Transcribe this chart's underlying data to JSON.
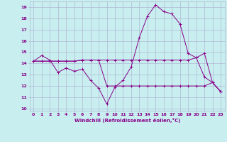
{
  "title": "",
  "xlabel": "Windchill (Refroidissement éolien,°C)",
  "ylabel": "",
  "background_color": "#c8eef0",
  "grid_color": "#aaaacc",
  "line_color": "#880088",
  "xlim": [
    -0.5,
    23.5
  ],
  "ylim": [
    9.8,
    19.5
  ],
  "x_ticks": [
    0,
    1,
    2,
    3,
    4,
    5,
    6,
    7,
    8,
    9,
    10,
    11,
    12,
    13,
    14,
    15,
    16,
    17,
    18,
    19,
    20,
    21,
    22,
    23
  ],
  "y_ticks": [
    10,
    11,
    12,
    13,
    14,
    15,
    16,
    17,
    18,
    19
  ],
  "series": [
    {
      "x": [
        0,
        1,
        2,
        3,
        4,
        5,
        6,
        7,
        8,
        9,
        10,
        11,
        12,
        13,
        14,
        15,
        16,
        17,
        18,
        19,
        20,
        21,
        22,
        23
      ],
      "y": [
        14.2,
        14.7,
        14.3,
        13.2,
        13.6,
        13.3,
        13.5,
        12.5,
        11.8,
        10.4,
        11.9,
        12.5,
        13.7,
        16.3,
        18.2,
        19.2,
        18.6,
        18.4,
        17.5,
        14.9,
        14.5,
        12.8,
        12.3,
        11.5
      ]
    },
    {
      "x": [
        0,
        1,
        2,
        3,
        4,
        5,
        6,
        7,
        8,
        9,
        10,
        11,
        12,
        13,
        14,
        15,
        16,
        17,
        18,
        19,
        20,
        21,
        22,
        23
      ],
      "y": [
        14.2,
        14.2,
        14.2,
        14.2,
        14.2,
        14.2,
        14.3,
        14.3,
        14.3,
        14.3,
        14.3,
        14.3,
        14.3,
        14.3,
        14.3,
        14.3,
        14.3,
        14.3,
        14.3,
        14.3,
        14.5,
        14.9,
        12.3,
        11.5
      ]
    },
    {
      "x": [
        0,
        1,
        2,
        3,
        4,
        5,
        6,
        7,
        8,
        9,
        10,
        11,
        12,
        13,
        14,
        15,
        16,
        17,
        18,
        19,
        20,
        21,
        22,
        23
      ],
      "y": [
        14.2,
        14.2,
        14.2,
        14.2,
        14.2,
        14.2,
        14.3,
        14.3,
        14.3,
        12.0,
        12.0,
        12.0,
        12.0,
        12.0,
        12.0,
        12.0,
        12.0,
        12.0,
        12.0,
        12.0,
        12.0,
        12.0,
        12.3,
        11.5
      ]
    }
  ]
}
